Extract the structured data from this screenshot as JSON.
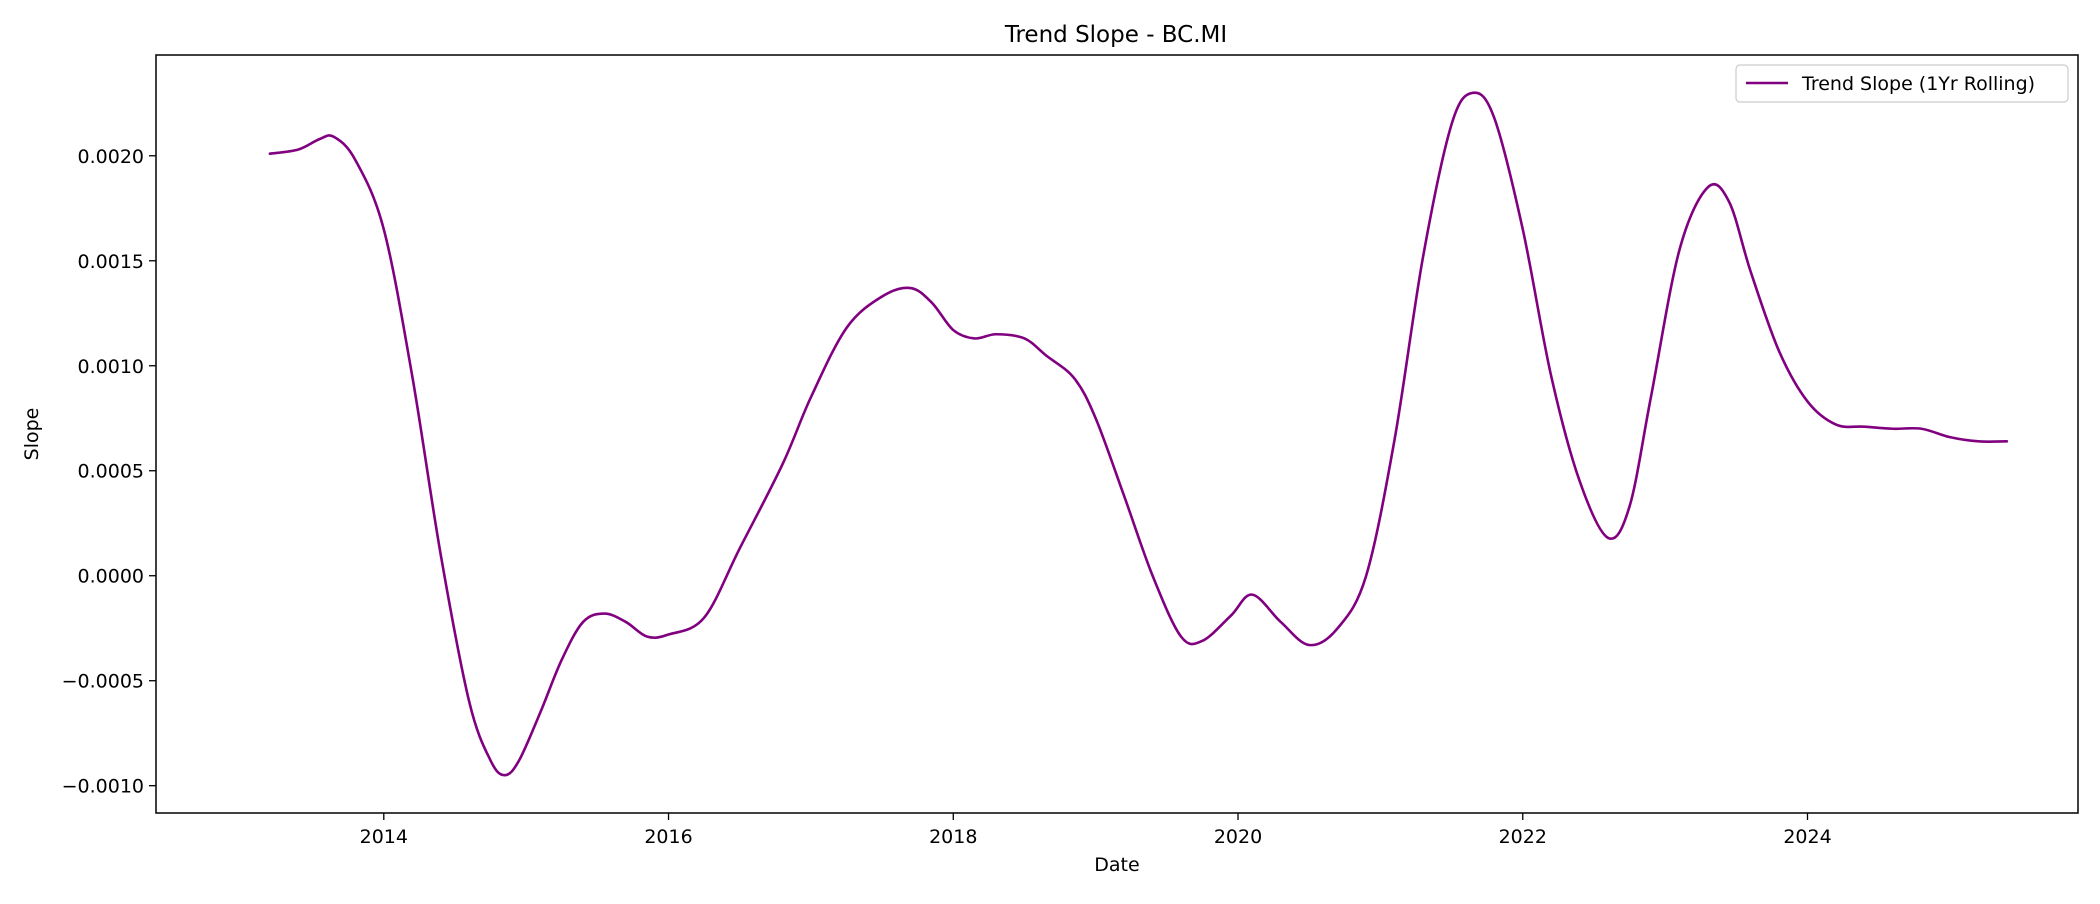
{
  "chart_data": {
    "type": "line",
    "title": "Trend Slope - BC.MI",
    "xlabel": "Date",
    "ylabel": "Slope",
    "xlim": [
      2012.4,
      2025.9
    ],
    "ylim": [
      -0.00113,
      0.00248
    ],
    "x_ticks": [
      2014,
      2016,
      2018,
      2020,
      2022,
      2024
    ],
    "x_tick_labels": [
      "2014",
      "2016",
      "2018",
      "2020",
      "2022",
      "2024"
    ],
    "y_ticks": [
      -0.001,
      -0.0005,
      0.0,
      0.0005,
      0.001,
      0.0015,
      0.002
    ],
    "y_tick_labels": [
      "−0.0010",
      "−0.0005",
      "0.0000",
      "0.0005",
      "0.0010",
      "0.0015",
      "0.0020"
    ],
    "grid": false,
    "legend_position": "top-right",
    "series": [
      {
        "name": "Trend Slope (1Yr Rolling)",
        "color": "#800080",
        "x": [
          2013.2,
          2013.4,
          2013.55,
          2013.65,
          2013.8,
          2014.0,
          2014.2,
          2014.4,
          2014.6,
          2014.75,
          2014.85,
          2014.95,
          2015.1,
          2015.25,
          2015.4,
          2015.55,
          2015.7,
          2015.85,
          2016.0,
          2016.25,
          2016.5,
          2016.8,
          2017.0,
          2017.25,
          2017.5,
          2017.7,
          2017.85,
          2018.0,
          2018.15,
          2018.3,
          2018.5,
          2018.65,
          2018.85,
          2019.0,
          2019.2,
          2019.4,
          2019.6,
          2019.75,
          2019.95,
          2020.1,
          2020.3,
          2020.5,
          2020.7,
          2020.9,
          2021.1,
          2021.3,
          2021.5,
          2021.65,
          2021.8,
          2022.0,
          2022.2,
          2022.4,
          2022.6,
          2022.75,
          2022.9,
          2023.1,
          2023.3,
          2023.45,
          2023.6,
          2023.8,
          2024.0,
          2024.2,
          2024.4,
          2024.6,
          2024.8,
          2025.0,
          2025.2,
          2025.4
        ],
        "y": [
          0.00201,
          0.00203,
          0.00208,
          0.00209,
          0.00198,
          0.00165,
          0.00095,
          0.0001,
          -0.0006,
          -0.00088,
          -0.00095,
          -0.00088,
          -0.00065,
          -0.0004,
          -0.00022,
          -0.00018,
          -0.00022,
          -0.00029,
          -0.00028,
          -0.0002,
          0.00013,
          0.00053,
          0.00085,
          0.00118,
          0.00133,
          0.00137,
          0.0013,
          0.00117,
          0.00113,
          0.00115,
          0.00113,
          0.00105,
          0.00094,
          0.00075,
          0.00038,
          0.0,
          -0.00029,
          -0.00031,
          -0.00019,
          -9e-05,
          -0.00022,
          -0.00033,
          -0.00025,
          0.0,
          0.00065,
          0.00152,
          0.00215,
          0.0023,
          0.00218,
          0.00165,
          0.00095,
          0.00045,
          0.00018,
          0.00033,
          0.00085,
          0.00155,
          0.00185,
          0.00178,
          0.00145,
          0.00107,
          0.00083,
          0.00072,
          0.00071,
          0.0007,
          0.0007,
          0.00066,
          0.00064,
          0.00064
        ]
      }
    ]
  }
}
